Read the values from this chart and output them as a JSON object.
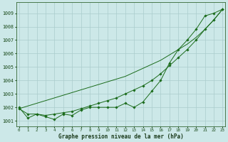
{
  "xlabel": "Graphe pression niveau de la mer (hPa)",
  "bg_color": "#cce8e8",
  "grid_color": "#aacccc",
  "line_color": "#1a6b1a",
  "ylim": [
    1000.6,
    1009.8
  ],
  "yticks": [
    1001,
    1002,
    1003,
    1004,
    1005,
    1006,
    1007,
    1008,
    1009
  ],
  "xlim": [
    -0.3,
    23.3
  ],
  "x_ticks": [
    0,
    1,
    2,
    3,
    4,
    5,
    6,
    7,
    8,
    9,
    10,
    11,
    12,
    13,
    14,
    15,
    16,
    17,
    18,
    19,
    20,
    21,
    22,
    23
  ],
  "line_measured": [
    1002.0,
    1001.2,
    1001.5,
    1001.3,
    1001.1,
    1001.5,
    1001.4,
    1001.8,
    1002.0,
    1002.0,
    1002.0,
    1002.0,
    1002.3,
    1002.0,
    1002.4,
    1003.2,
    1004.0,
    1005.3,
    1006.3,
    1007.0,
    1007.8,
    1008.8,
    1009.0,
    1009.3
  ],
  "line_smooth": [
    1001.9,
    1001.5,
    1001.5,
    1001.4,
    1001.5,
    1001.6,
    1001.7,
    1001.9,
    1002.1,
    1002.3,
    1002.5,
    1002.7,
    1003.0,
    1003.3,
    1003.6,
    1004.0,
    1004.5,
    1005.1,
    1005.7,
    1006.3,
    1007.0,
    1007.8,
    1008.5,
    1009.3
  ],
  "line_trend": [
    1001.9,
    1002.1,
    1002.3,
    1002.5,
    1002.7,
    1002.9,
    1003.1,
    1003.3,
    1003.5,
    1003.7,
    1003.9,
    1004.1,
    1004.3,
    1004.6,
    1004.9,
    1005.2,
    1005.5,
    1005.9,
    1006.3,
    1006.7,
    1007.2,
    1007.8,
    1008.5,
    1009.3
  ]
}
